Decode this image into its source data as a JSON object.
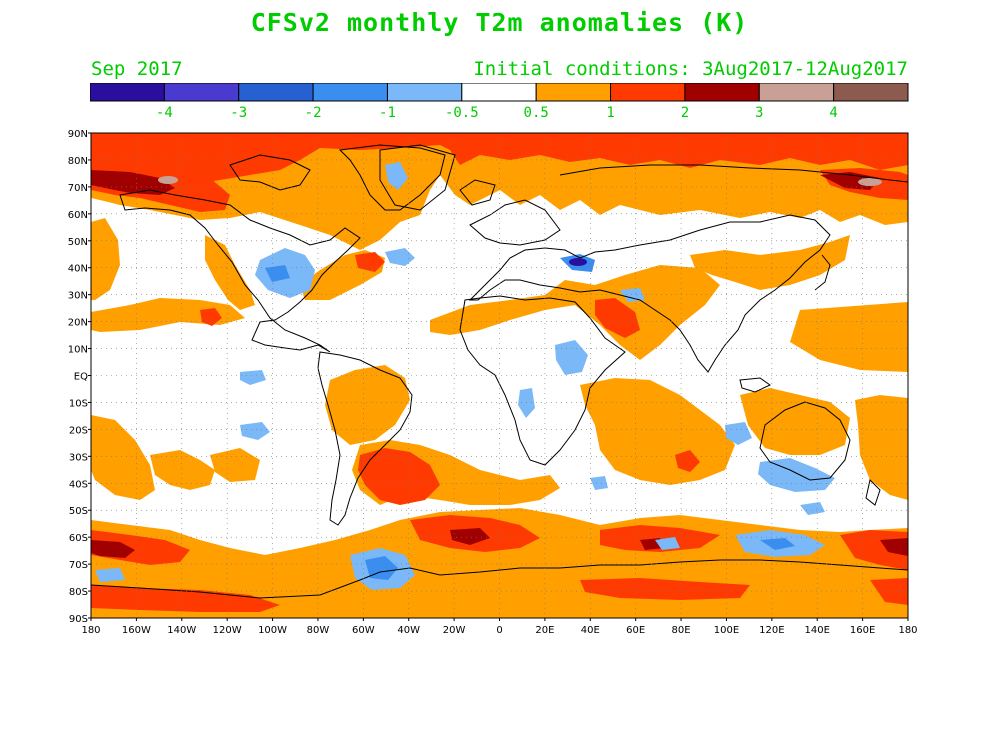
{
  "title": "CFSv2 monthly T2m anomalies (K)",
  "month": "Sep 2017",
  "initial_conditions": "Initial conditions: 3Aug2017-12Aug2017",
  "colorbar": {
    "colors": [
      "#2a0f9e",
      "#4a3ad0",
      "#2760d0",
      "#3a8ef0",
      "#7ab8f7",
      "#ffffff",
      "#ffa000",
      "#ff3a00",
      "#a00000",
      "#c9a096",
      "#8c5a4e"
    ],
    "labels": [
      "-4",
      "-3",
      "-2",
      "-1",
      "-0.5",
      "0.5",
      "1",
      "2",
      "3",
      "4"
    ]
  },
  "axes": {
    "lat_labels": [
      "90N",
      "80N",
      "70N",
      "60N",
      "50N",
      "40N",
      "30N",
      "20N",
      "10N",
      "EQ",
      "10S",
      "20S",
      "30S",
      "40S",
      "50S",
      "60S",
      "70S",
      "80S",
      "90S"
    ],
    "lon_labels": [
      "180",
      "160W",
      "140W",
      "120W",
      "100W",
      "80W",
      "60W",
      "40W",
      "20W",
      "0",
      "20E",
      "40E",
      "60E",
      "80E",
      "100E",
      "120E",
      "140E",
      "160E",
      "180"
    ]
  }
}
